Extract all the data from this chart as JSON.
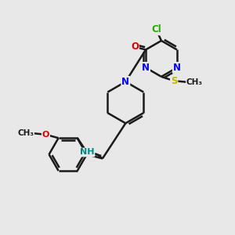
{
  "background_color": "#e8e8e8",
  "bond_color": "#1a1a1a",
  "bond_width": 1.8,
  "atom_colors": {
    "Cl": "#22aa00",
    "O": "#dd0000",
    "N": "#0000ee",
    "S": "#bbbb00",
    "NH": "#008888",
    "C": "#1a1a1a"
  },
  "figsize": [
    3.0,
    3.0
  ],
  "dpi": 100
}
